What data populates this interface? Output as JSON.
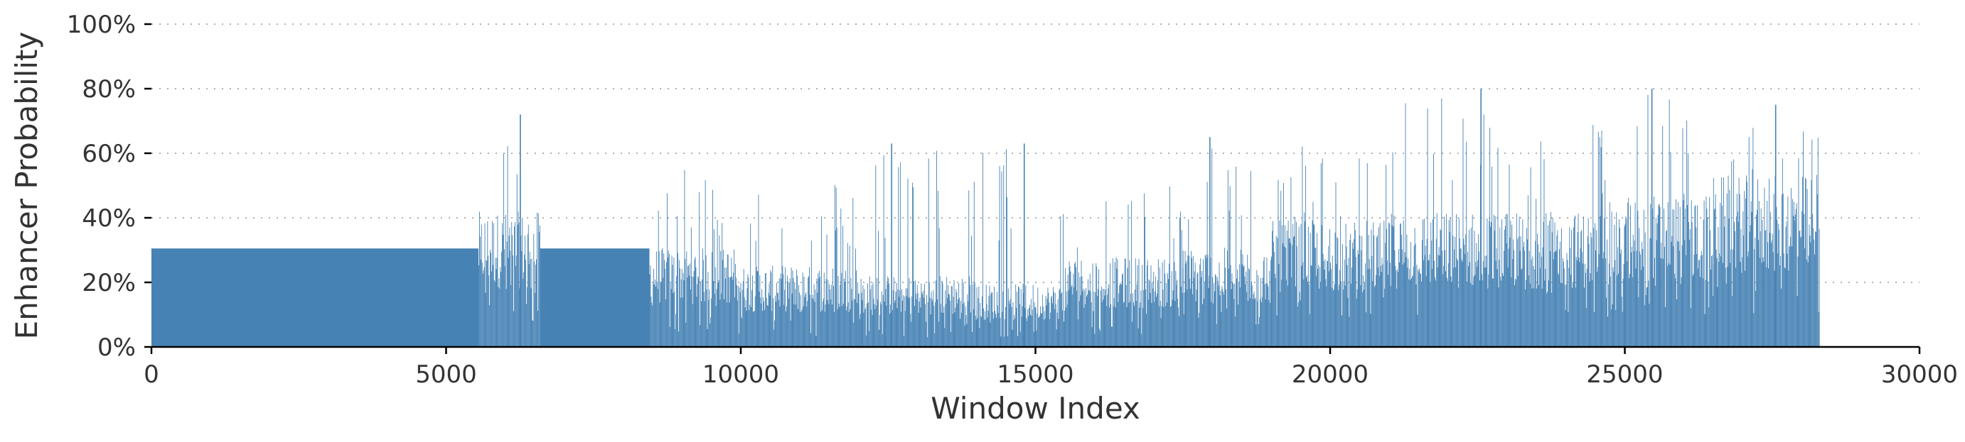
{
  "chart_data": {
    "type": "bar",
    "title": "",
    "xlabel": "Window Index",
    "ylabel": "Enhancer Probability",
    "xlim": [
      0,
      30000
    ],
    "ylim": [
      0,
      1
    ],
    "x_ticks": [
      0,
      5000,
      10000,
      15000,
      20000,
      25000,
      30000
    ],
    "x_tick_labels": [
      "0",
      "5000",
      "10000",
      "15000",
      "20000",
      "25000",
      "30000"
    ],
    "y_ticks": [
      0,
      0.2,
      0.4,
      0.6,
      0.8,
      1.0
    ],
    "y_tick_labels": [
      "0%",
      "20%",
      "40%",
      "60%",
      "80%",
      "100%"
    ],
    "grid": {
      "y": true,
      "x": false,
      "style": "dotted"
    },
    "legend": "none",
    "colors": {
      "bar": "#4682b4",
      "grid": "#b0b0b0",
      "axis": "#000000"
    },
    "series": [
      {
        "segments": [
          {
            "x_start": 0,
            "x_end": 5550,
            "kind": "constant",
            "value": 0.305
          },
          {
            "x_start": 5550,
            "x_end": 6600,
            "kind": "spiky",
            "base": 0.3,
            "low": 0.05,
            "peak": 0.72
          },
          {
            "x_start": 6600,
            "x_end": 8450,
            "kind": "constant",
            "value": 0.305
          },
          {
            "x_start": 8450,
            "x_end": 10000,
            "kind": "spiky",
            "base": 0.22,
            "low": 0.04,
            "peak": 0.55
          },
          {
            "x_start": 10000,
            "x_end": 12000,
            "kind": "spiky",
            "base": 0.18,
            "low": 0.03,
            "peak": 0.52
          },
          {
            "x_start": 12000,
            "x_end": 14000,
            "kind": "spiky",
            "base": 0.16,
            "low": 0.03,
            "peak": 0.63
          },
          {
            "x_start": 14000,
            "x_end": 15500,
            "kind": "spiky",
            "base": 0.14,
            "low": 0.03,
            "peak": 0.63
          },
          {
            "x_start": 15500,
            "x_end": 17500,
            "kind": "spiky",
            "base": 0.2,
            "low": 0.04,
            "peak": 0.5
          },
          {
            "x_start": 17500,
            "x_end": 19000,
            "kind": "spiky",
            "base": 0.22,
            "low": 0.05,
            "peak": 0.65
          },
          {
            "x_start": 19000,
            "x_end": 21000,
            "kind": "spiky",
            "base": 0.28,
            "low": 0.08,
            "peak": 0.63
          },
          {
            "x_start": 21000,
            "x_end": 23000,
            "kind": "spiky",
            "base": 0.3,
            "low": 0.08,
            "peak": 0.8
          },
          {
            "x_start": 23000,
            "x_end": 25000,
            "kind": "spiky",
            "base": 0.3,
            "low": 0.08,
            "peak": 0.71
          },
          {
            "x_start": 25000,
            "x_end": 26500,
            "kind": "spiky",
            "base": 0.34,
            "low": 0.09,
            "peak": 0.8
          },
          {
            "x_start": 26500,
            "x_end": 28300,
            "kind": "spiky",
            "base": 0.38,
            "low": 0.09,
            "peak": 0.75
          }
        ],
        "notable_peaks": [
          {
            "x": 6250,
            "value": 0.72
          },
          {
            "x": 12550,
            "value": 0.63
          },
          {
            "x": 14800,
            "value": 0.63
          },
          {
            "x": 17950,
            "value": 0.65
          },
          {
            "x": 22550,
            "value": 0.8
          },
          {
            "x": 25450,
            "value": 0.8
          },
          {
            "x": 27550,
            "value": 0.75
          }
        ]
      }
    ]
  }
}
